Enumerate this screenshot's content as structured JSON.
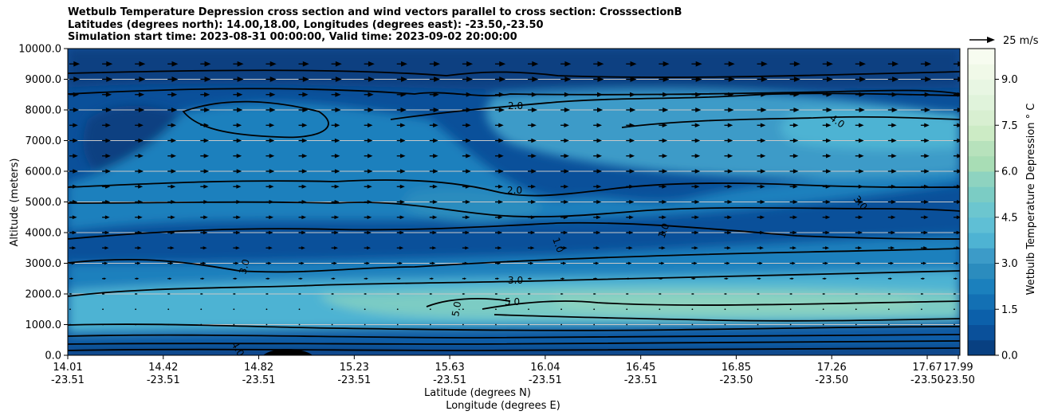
{
  "chart_data": {
    "type": "contour",
    "title_lines": [
      "Wetbulb Temperature Depression cross section and wind vectors parallel to cross section: CrosssectionB",
      "Latitudes (degrees north): 14.00,18.00, Longitudes (degrees east): -23.50,-23.50",
      "Simulation start time: 2023-08-31 00:00:00, Valid time: 2023-09-02 20:00:00"
    ],
    "ylabel": "Altitude (meters)",
    "xlabel_lat": "Latitude (degrees N)",
    "xlabel_lon": "Longitude (degrees E)",
    "ylim": [
      0,
      10000
    ],
    "yticks": [
      "0.0",
      "1000.0",
      "2000.0",
      "3000.0",
      "4000.0",
      "5000.0",
      "6000.0",
      "7000.0",
      "8000.0",
      "9000.0",
      "10000.0"
    ],
    "xticks": [
      {
        "lat": "14.01",
        "lon": "-23.51"
      },
      {
        "lat": "14.42",
        "lon": "-23.51"
      },
      {
        "lat": "14.82",
        "lon": "-23.51"
      },
      {
        "lat": "15.23",
        "lon": "-23.51"
      },
      {
        "lat": "15.63",
        "lon": "-23.51"
      },
      {
        "lat": "16.04",
        "lon": "-23.51"
      },
      {
        "lat": "16.45",
        "lon": "-23.51"
      },
      {
        "lat": "16.85",
        "lon": "-23.50"
      },
      {
        "lat": "17.26",
        "lon": "-23.50"
      },
      {
        "lat": "17.67",
        "lon": "-23.50"
      },
      {
        "lat": "17.99",
        "lon": "-23.50"
      }
    ],
    "grid": "horizontal",
    "colorbar": {
      "label": "Wetbulb Temperature Depression $^\\circ$C",
      "label_display": "Wetbulb Temperature Depression ° C",
      "ticks": [
        "0.0",
        "1.5",
        "3.0",
        "4.5",
        "6.0",
        "7.5",
        "9.0"
      ],
      "range": [
        0,
        10
      ],
      "levels": 20,
      "colors": [
        "#084081",
        "#0a509a",
        "#0c60aa",
        "#1370b4",
        "#1b80bd",
        "#2b8cbe",
        "#3c9bc8",
        "#4eb3d3",
        "#5fbfd5",
        "#6cc6cf",
        "#7bccc4",
        "#8ed3c0",
        "#a8ddb5",
        "#b7e2bc",
        "#ccebc5",
        "#d8efd1",
        "#e0f3db",
        "#e8f6e3",
        "#f0f9e8",
        "#f7fcf0"
      ]
    },
    "quiver_key": "25 m/s",
    "contour_labels": [
      "2.0",
      "3.0",
      "4.0",
      "1.0",
      "5.0",
      "3.0",
      "2.0",
      "3.0",
      "4.0",
      "1.0",
      "5.0"
    ],
    "wind_altitudes": [
      9500,
      9000,
      8500,
      8000,
      7500,
      7000,
      6500,
      6000,
      5500,
      5000,
      4500,
      4000,
      3500,
      3000,
      2500,
      2000,
      1500,
      1000
    ],
    "wind_lengths": [
      0.55,
      0.55,
      0.5,
      0.5,
      0.45,
      0.45,
      0.45,
      0.45,
      0.42,
      0.42,
      0.4,
      0.38,
      0.35,
      0.3,
      0.22,
      0.15,
      0.05,
      0.02
    ]
  }
}
